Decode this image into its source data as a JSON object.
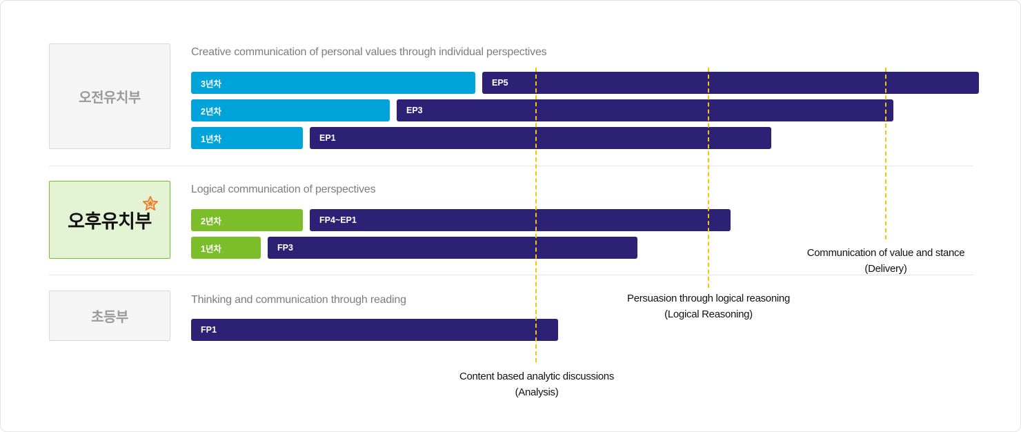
{
  "sections": [
    {
      "label": "오전유치부",
      "title": "Creative communication of personal values through individual perspectives",
      "rows": [
        {
          "grade": "3년차",
          "level": "EP5"
        },
        {
          "grade": "2년차",
          "level": "EP3"
        },
        {
          "grade": "1년차",
          "level": "EP1"
        }
      ]
    },
    {
      "label": "오후유치부",
      "title": "Logical communication of perspectives",
      "rows": [
        {
          "grade": "2년차",
          "level": "FP4~EP1"
        },
        {
          "grade": "1년차",
          "level": "FP3"
        }
      ]
    },
    {
      "label": "초등부",
      "title": "Thinking and communication through reading",
      "rows": [
        {
          "level": "FP1"
        }
      ]
    }
  ],
  "markers": [
    {
      "line1": "Content based analytic discussions",
      "line2": "(Analysis)"
    },
    {
      "line1": "Persuasion through logical reasoning",
      "line2": "(Logical Reasoning)"
    },
    {
      "line1": "Communication of value and stance",
      "line2": "(Delivery)"
    }
  ],
  "colors": {
    "grade_morning": "#00a4da",
    "grade_afternoon": "#7cbd2a",
    "level_bar": "#2d2176",
    "marker_line": "#f7c600",
    "highlight_star": "#f07d2a"
  },
  "icons": {
    "highlight": "star-icon"
  }
}
